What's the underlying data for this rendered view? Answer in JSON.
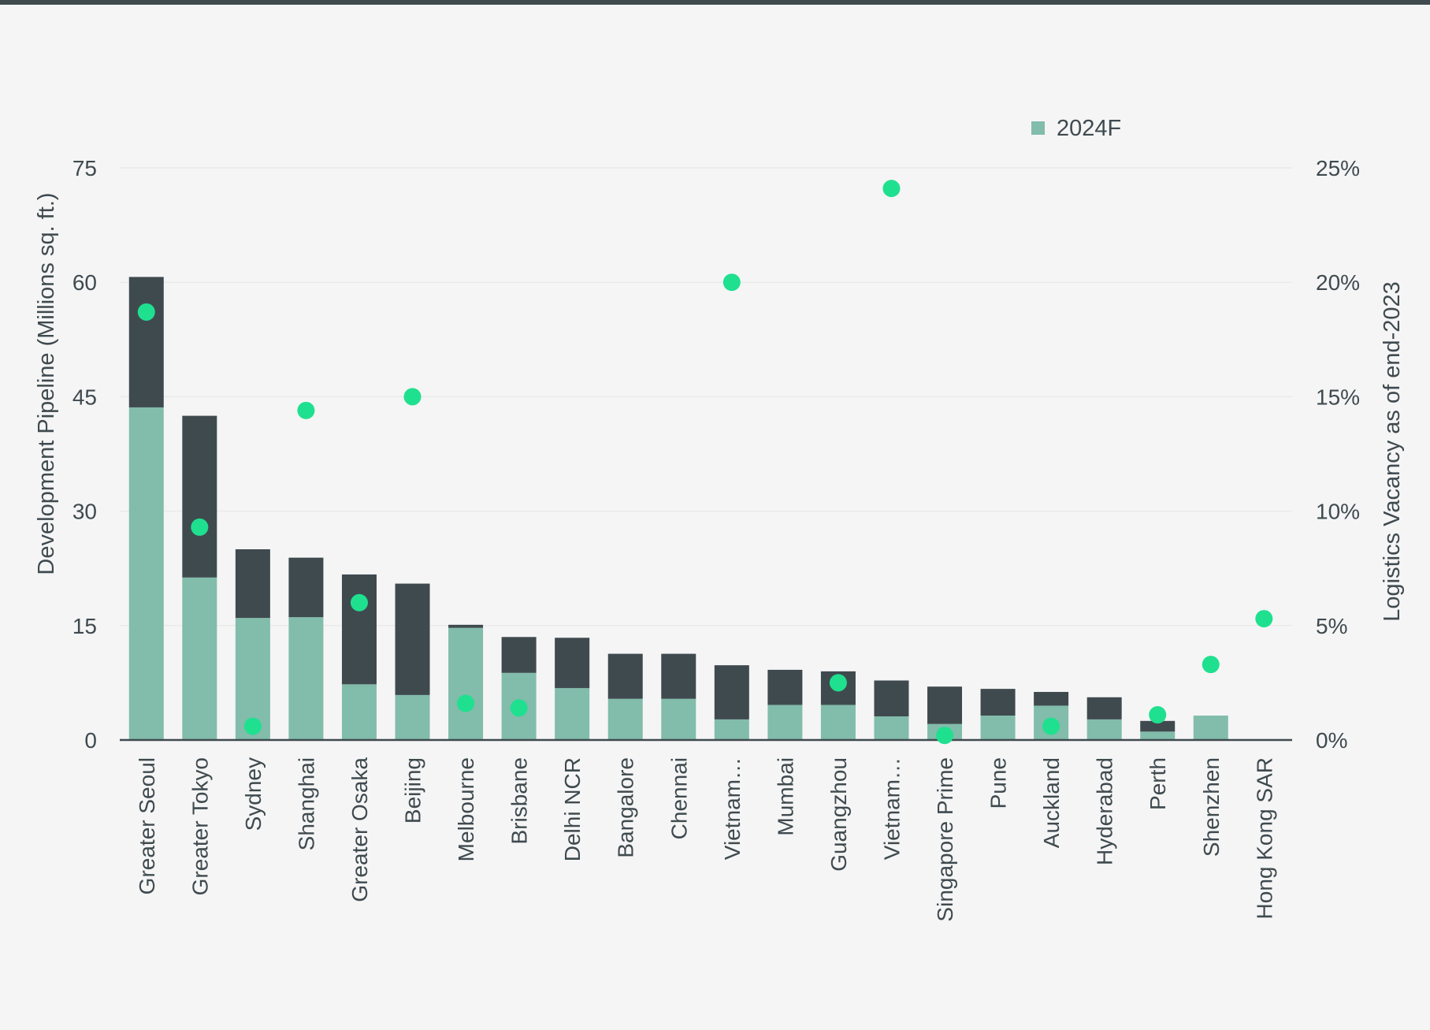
{
  "chart_data": {
    "type": "bar",
    "stacked": true,
    "categories": [
      "Greater Seoul",
      "Greater Tokyo",
      "Sydney",
      "Shanghai",
      "Greater Osaka",
      "Beijing",
      "Melbourne",
      "Brisbane",
      "Delhi NCR",
      "Bangalore",
      "Chennai",
      "Vietnam…",
      "Mumbai",
      "Guangzhou",
      "Vietnam…",
      "Singapore Prime",
      "Pune",
      "Auckland",
      "Hyderabad",
      "Perth",
      "Shenzhen",
      "Hong Kong SAR"
    ],
    "series": [
      {
        "name": "2024F",
        "type": "bar",
        "axis": "left",
        "color": "#82bcab",
        "values": [
          43.6,
          21.3,
          16.0,
          16.1,
          7.3,
          5.9,
          14.7,
          8.8,
          6.8,
          5.4,
          5.4,
          2.7,
          4.6,
          4.6,
          3.1,
          2.1,
          3.2,
          4.5,
          2.7,
          1.1,
          3.2,
          0
        ]
      },
      {
        "type": "bar",
        "axis": "left",
        "color": "#3f4a4f",
        "values": [
          17.1,
          21.2,
          9.0,
          7.8,
          14.4,
          14.6,
          0.4,
          4.7,
          6.6,
          5.9,
          5.9,
          7.1,
          4.6,
          4.4,
          4.7,
          4.9,
          3.5,
          1.8,
          2.9,
          1.4,
          0,
          0
        ]
      },
      {
        "type": "scatter",
        "axis": "right",
        "color": "#1fe08f",
        "values": [
          18.7,
          9.3,
          0.6,
          14.4,
          6.0,
          15.0,
          1.6,
          1.4,
          null,
          null,
          null,
          20.0,
          null,
          2.5,
          24.1,
          0.2,
          null,
          0.6,
          null,
          1.1,
          3.3,
          5.3
        ]
      }
    ],
    "ylabel": "Development Pipeline (Millions sq. ft.)",
    "y2label": "Logistics Vacancy as of end-2023",
    "ylim": [
      0,
      75
    ],
    "y2lim": [
      0,
      25
    ],
    "yticks": [
      "0",
      "15",
      "30",
      "45",
      "60",
      "75"
    ],
    "y2ticks": [
      "0%",
      "5%",
      "10%",
      "15%",
      "20%",
      "25%"
    ],
    "grid": true,
    "legend": [
      "2024F"
    ],
    "legend_position": "top-right"
  }
}
